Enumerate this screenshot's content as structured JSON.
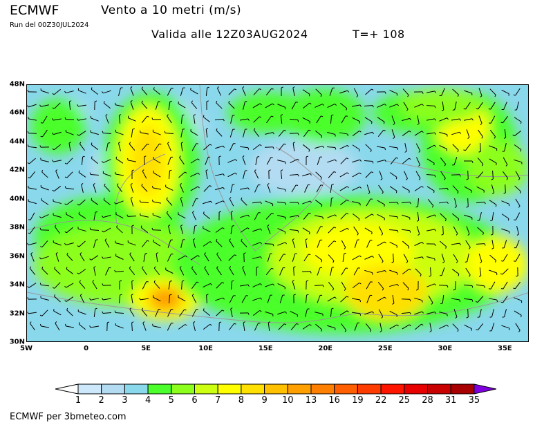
{
  "header": {
    "model": "ECMWF",
    "title": "Vento a 10 metri (m/s)",
    "run": "Run del 00Z30JUL2024",
    "valid": "Valida alle 12Z03AUG2024",
    "lead": "T=+ 108"
  },
  "map": {
    "lat_labels": [
      "48N",
      "46N",
      "44N",
      "42N",
      "40N",
      "38N",
      "36N",
      "34N",
      "32N",
      "30N"
    ],
    "lat_values": [
      48,
      46,
      44,
      42,
      40,
      38,
      36,
      34,
      32,
      30
    ],
    "lon_labels": [
      "5W",
      "0",
      "5E",
      "10E",
      "15E",
      "20E",
      "25E",
      "30E",
      "35E"
    ],
    "lon_values": [
      -5,
      0,
      5,
      10,
      15,
      20,
      25,
      30,
      35
    ],
    "extent": {
      "lon": [
        -5,
        37
      ],
      "lat": [
        30,
        48
      ]
    }
  },
  "colorbar": {
    "labels": [
      "1",
      "2",
      "3",
      "4",
      "5",
      "6",
      "7",
      "8",
      "9",
      "10",
      "13",
      "16",
      "19",
      "22",
      "25",
      "28",
      "31",
      "35"
    ],
    "colors": [
      "#cce8fa",
      "#b3dcf2",
      "#8ad8ec",
      "#4cff2c",
      "#8cff1c",
      "#ccff10",
      "#ffff00",
      "#ffe000",
      "#ffc000",
      "#ff9f00",
      "#ff7f00",
      "#ff5f00",
      "#ff3c00",
      "#ff1400",
      "#e80000",
      "#c80000",
      "#a80000"
    ],
    "under_color": "#ffffff",
    "over_color": "#8000e0"
  },
  "footer": "ECMWF per 3bmeteo.com"
}
